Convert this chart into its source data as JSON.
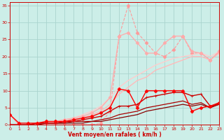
{
  "bg_color": "#cceee8",
  "grid_color": "#aad4ce",
  "xlabel": "Vent moyen/en rafales ( km/h )",
  "xlim": [
    0,
    23
  ],
  "ylim": [
    0,
    36
  ],
  "yticks": [
    0,
    5,
    10,
    15,
    20,
    25,
    30,
    35
  ],
  "xticks": [
    0,
    1,
    2,
    3,
    4,
    5,
    6,
    7,
    8,
    9,
    10,
    11,
    12,
    13,
    14,
    15,
    16,
    17,
    18,
    19,
    20,
    21,
    22,
    23
  ],
  "series": [
    {
      "x": [
        0,
        1,
        2,
        3,
        4,
        5,
        6,
        7,
        8,
        9,
        10,
        11,
        12,
        13,
        14,
        15,
        16,
        17,
        18,
        19,
        20,
        21,
        22,
        23
      ],
      "y": [
        0,
        0,
        0,
        0,
        0,
        0,
        0,
        0,
        0,
        0,
        0.5,
        4,
        26,
        35,
        27,
        24,
        21,
        20,
        22,
        26,
        21,
        21,
        19,
        21.5
      ],
      "color": "#ff9999",
      "lw": 0.8,
      "marker": "D",
      "ms": 2.5,
      "ls": "--"
    },
    {
      "x": [
        0,
        1,
        2,
        3,
        4,
        5,
        6,
        7,
        8,
        9,
        10,
        11,
        12,
        13,
        14,
        15,
        16,
        17,
        18,
        19,
        20,
        21,
        22,
        23
      ],
      "y": [
        0,
        0,
        0,
        0,
        0.5,
        0.5,
        1,
        1.5,
        2,
        3,
        4,
        6,
        9,
        11,
        13,
        14,
        16,
        17,
        18,
        19,
        20,
        20,
        19,
        21
      ],
      "color": "#ffbbbb",
      "lw": 1.0,
      "marker": null,
      "ls": "-"
    },
    {
      "x": [
        0,
        1,
        2,
        3,
        4,
        5,
        6,
        7,
        8,
        9,
        10,
        11,
        12,
        13,
        14,
        15,
        16,
        17,
        18,
        19,
        20,
        21,
        22,
        23
      ],
      "y": [
        0,
        0,
        0,
        0,
        0.5,
        1,
        1.5,
        2,
        3,
        4,
        5.5,
        8,
        11,
        13,
        14.5,
        16,
        17.5,
        18.5,
        19.5,
        20,
        20.5,
        21,
        20,
        21.5
      ],
      "color": "#ffcccc",
      "lw": 1.0,
      "marker": null,
      "ls": "-"
    },
    {
      "x": [
        0,
        1,
        2,
        3,
        4,
        5,
        6,
        7,
        8,
        9,
        10,
        11,
        12,
        13,
        14,
        15,
        16,
        17,
        18,
        19,
        20,
        21,
        22,
        23
      ],
      "y": [
        3,
        0,
        0,
        0.5,
        1,
        1,
        1.5,
        2,
        2.5,
        3.5,
        5,
        8,
        26,
        27,
        24,
        21,
        21,
        24,
        26,
        26,
        21.5,
        21,
        19,
        21.5
      ],
      "color": "#ffaaaa",
      "lw": 0.9,
      "marker": "D",
      "ms": 2.5,
      "ls": "-"
    },
    {
      "x": [
        0,
        1,
        2,
        3,
        4,
        5,
        6,
        7,
        8,
        9,
        10,
        11,
        12,
        13,
        14,
        15,
        16,
        17,
        18,
        19,
        20,
        21,
        22,
        23
      ],
      "y": [
        0,
        0,
        0,
        0,
        0.5,
        0.5,
        0.5,
        0.5,
        0.5,
        1,
        1,
        1.5,
        2,
        2.5,
        3,
        4,
        4.5,
        5,
        5.5,
        6,
        5.5,
        6,
        5,
        6.5
      ],
      "color": "#880000",
      "lw": 0.9,
      "marker": null,
      "ls": "-"
    },
    {
      "x": [
        0,
        1,
        2,
        3,
        4,
        5,
        6,
        7,
        8,
        9,
        10,
        11,
        12,
        13,
        14,
        15,
        16,
        17,
        18,
        19,
        20,
        21,
        22,
        23
      ],
      "y": [
        0,
        0,
        0,
        0.5,
        0.5,
        0.5,
        0.5,
        1,
        1,
        1,
        1.5,
        2,
        3,
        3.5,
        4,
        5,
        5.5,
        6,
        6.5,
        7,
        6,
        6.5,
        5,
        6
      ],
      "color": "#aa0000",
      "lw": 0.9,
      "marker": null,
      "ls": "-"
    },
    {
      "x": [
        0,
        1,
        2,
        3,
        4,
        5,
        6,
        7,
        8,
        9,
        10,
        11,
        12,
        13,
        14,
        15,
        16,
        17,
        18,
        19,
        20,
        21,
        22,
        23
      ],
      "y": [
        0,
        0,
        0,
        0.5,
        0.5,
        0.5,
        1,
        1,
        1.5,
        2,
        2.5,
        4,
        5.5,
        5.5,
        6,
        8,
        8.5,
        9,
        9.5,
        9.5,
        8.5,
        9,
        5.5,
        6
      ],
      "color": "#cc0000",
      "lw": 1.0,
      "marker": "+",
      "ms": 3.5,
      "ls": "-"
    },
    {
      "x": [
        0,
        1,
        2,
        3,
        4,
        5,
        6,
        7,
        8,
        9,
        10,
        11,
        12,
        13,
        14,
        15,
        16,
        17,
        18,
        19,
        20,
        21,
        22,
        23
      ],
      "y": [
        3,
        0.5,
        0.5,
        0.5,
        1,
        1,
        1,
        1.5,
        2,
        2.5,
        3.5,
        5,
        10.5,
        10,
        5,
        10,
        10,
        10,
        10,
        10,
        4,
        5,
        5.5,
        6.5
      ],
      "color": "#ff0000",
      "lw": 1.0,
      "marker": "D",
      "ms": 2.5,
      "ls": "-"
    }
  ]
}
